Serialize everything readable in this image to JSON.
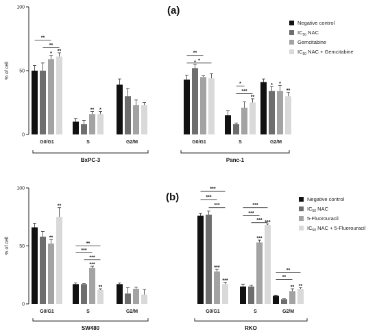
{
  "chart_data": [
    {
      "type": "bar",
      "title": "(a)",
      "ylabel": "% of cell",
      "ylim": [
        0,
        100
      ],
      "yticks": [
        0,
        50,
        100
      ],
      "categories": [
        "G0/G1",
        "S",
        "G2/M",
        "G0/G1",
        "S",
        "G2/M"
      ],
      "groups": [
        {
          "label": "BxPC-3",
          "category_indices": [
            0,
            1,
            2
          ]
        },
        {
          "label": "Panc-1",
          "category_indices": [
            3,
            4,
            5
          ]
        }
      ],
      "legend_position": "top-right",
      "series": [
        {
          "name": "Negative control",
          "color": "#111111",
          "values": [
            50,
            10,
            39,
            43,
            15,
            41
          ],
          "errors": [
            4,
            2.5,
            4.5,
            3.5,
            3.5,
            2.5
          ]
        },
        {
          "name": "IC50 NAC",
          "color": "#6e6e6e",
          "values": [
            50,
            8,
            30,
            52,
            8,
            34
          ],
          "errors": [
            6,
            3,
            6,
            3,
            1,
            3.5
          ]
        },
        {
          "name": "Gemcitabine",
          "color": "#a3a3a3",
          "values": [
            59,
            16,
            23,
            45,
            21,
            34
          ],
          "errors": [
            3,
            2,
            4,
            1,
            4.5,
            4.5
          ]
        },
        {
          "name": "IC50 NAC + Gemcitabine",
          "color": "#d9d9d9",
          "values": [
            61,
            16,
            23,
            44,
            25,
            30
          ],
          "errors": [
            3,
            2,
            2,
            3.5,
            3,
            3
          ]
        }
      ],
      "annotations": [
        {
          "text": "*",
          "category": 0,
          "series": 2
        },
        {
          "text": "**",
          "category": 0,
          "series": 3
        },
        {
          "text": "**",
          "category": 1,
          "series": 2
        },
        {
          "text": "*",
          "category": 1,
          "series": 3
        },
        {
          "text": "*",
          "category": 3,
          "series": 1
        },
        {
          "text": "**",
          "category": 4,
          "series": 3
        },
        {
          "text": "*",
          "category": 5,
          "series": 1
        },
        {
          "text": "*",
          "category": 5,
          "series": 2
        },
        {
          "text": "**",
          "category": 5,
          "series": 3
        }
      ],
      "brackets": [
        {
          "text": "**",
          "category": 0,
          "from": 0,
          "to": 2,
          "y": 74
        },
        {
          "text": "**",
          "category": 0,
          "from": 1,
          "to": 3,
          "y": 68
        },
        {
          "text": "**",
          "category": 3,
          "from": 0,
          "to": 2,
          "y": 62
        },
        {
          "text": "*",
          "category": 3,
          "from": 0,
          "to": 3,
          "y": 56
        },
        {
          "text": "*",
          "category": 4,
          "from": 1,
          "to": 2,
          "y": 38
        },
        {
          "text": "***",
          "category": 4,
          "from": 1,
          "to": 3,
          "y": 32
        }
      ]
    },
    {
      "type": "bar",
      "title": "(b)",
      "ylabel": "% of cell",
      "ylim": [
        0,
        100
      ],
      "yticks": [
        0,
        50,
        100
      ],
      "categories": [
        "G0/G1",
        "S",
        "G2/M",
        "G0/G1",
        "S",
        "G2/M"
      ],
      "groups": [
        {
          "label": "SW480",
          "category_indices": [
            0,
            1,
            2
          ]
        },
        {
          "label": "RKO",
          "category_indices": [
            3,
            4,
            5
          ]
        }
      ],
      "legend_position": "top-right",
      "series": [
        {
          "name": "Negative control",
          "color": "#111111",
          "values": [
            66,
            17,
            17,
            76,
            15,
            7
          ],
          "errors": [
            3.5,
            1,
            1,
            2,
            2,
            0.5
          ]
        },
        {
          "name": "IC50 NAC",
          "color": "#6e6e6e",
          "values": [
            58,
            17,
            9,
            77,
            15,
            4
          ],
          "errors": [
            4.5,
            0.5,
            5,
            3,
            1,
            0.5
          ]
        },
        {
          "name": "5-Fluorouracil",
          "color": "#a3a3a3",
          "values": [
            52,
            31,
            13,
            28,
            53,
            11
          ],
          "errors": [
            3.5,
            1.5,
            1.5,
            2,
            2,
            2
          ]
        },
        {
          "name": "IC50 NAC + 5-Fluorouracil",
          "color": "#d9d9d9",
          "values": [
            75,
            12,
            8,
            17,
            68,
            13
          ],
          "errors": [
            8,
            1,
            4.5,
            1.5,
            1,
            1
          ]
        }
      ],
      "annotations": [
        {
          "text": "**",
          "category": 0,
          "series": 2
        },
        {
          "text": "**",
          "category": 0,
          "series": 3
        },
        {
          "text": "***",
          "category": 1,
          "series": 2
        },
        {
          "text": "**",
          "category": 1,
          "series": 3
        },
        {
          "text": "***",
          "category": 3,
          "series": 2
        },
        {
          "text": "***",
          "category": 3,
          "series": 3
        },
        {
          "text": "***",
          "category": 4,
          "series": 2
        },
        {
          "text": "***",
          "category": 4,
          "series": 3
        },
        {
          "text": "**",
          "category": 5,
          "series": 2
        },
        {
          "text": "**",
          "category": 5,
          "series": 3
        }
      ],
      "brackets": [
        {
          "text": "**",
          "category": 1,
          "from": 0,
          "to": 3,
          "y": 50
        },
        {
          "text": "***",
          "category": 1,
          "from": 0,
          "to": 2,
          "y": 44
        },
        {
          "text": "***",
          "category": 1,
          "from": 1,
          "to": 3,
          "y": 38
        },
        {
          "text": "***",
          "category": 3,
          "from": 0,
          "to": 3,
          "y": 97
        },
        {
          "text": "***",
          "category": 3,
          "from": 0,
          "to": 2,
          "y": 90
        },
        {
          "text": "***",
          "category": 3,
          "from": 1,
          "to": 3,
          "y": 83
        },
        {
          "text": "***",
          "category": 4,
          "from": 0,
          "to": 3,
          "y": 83
        },
        {
          "text": "***",
          "category": 4,
          "from": 0,
          "to": 2,
          "y": 76
        },
        {
          "text": "***",
          "category": 4,
          "from": 1,
          "to": 3,
          "y": 70
        },
        {
          "text": "**",
          "category": 5,
          "from": 0,
          "to": 3,
          "y": 27
        },
        {
          "text": "**",
          "category": 5,
          "from": 0,
          "to": 2,
          "y": 21
        }
      ]
    }
  ]
}
